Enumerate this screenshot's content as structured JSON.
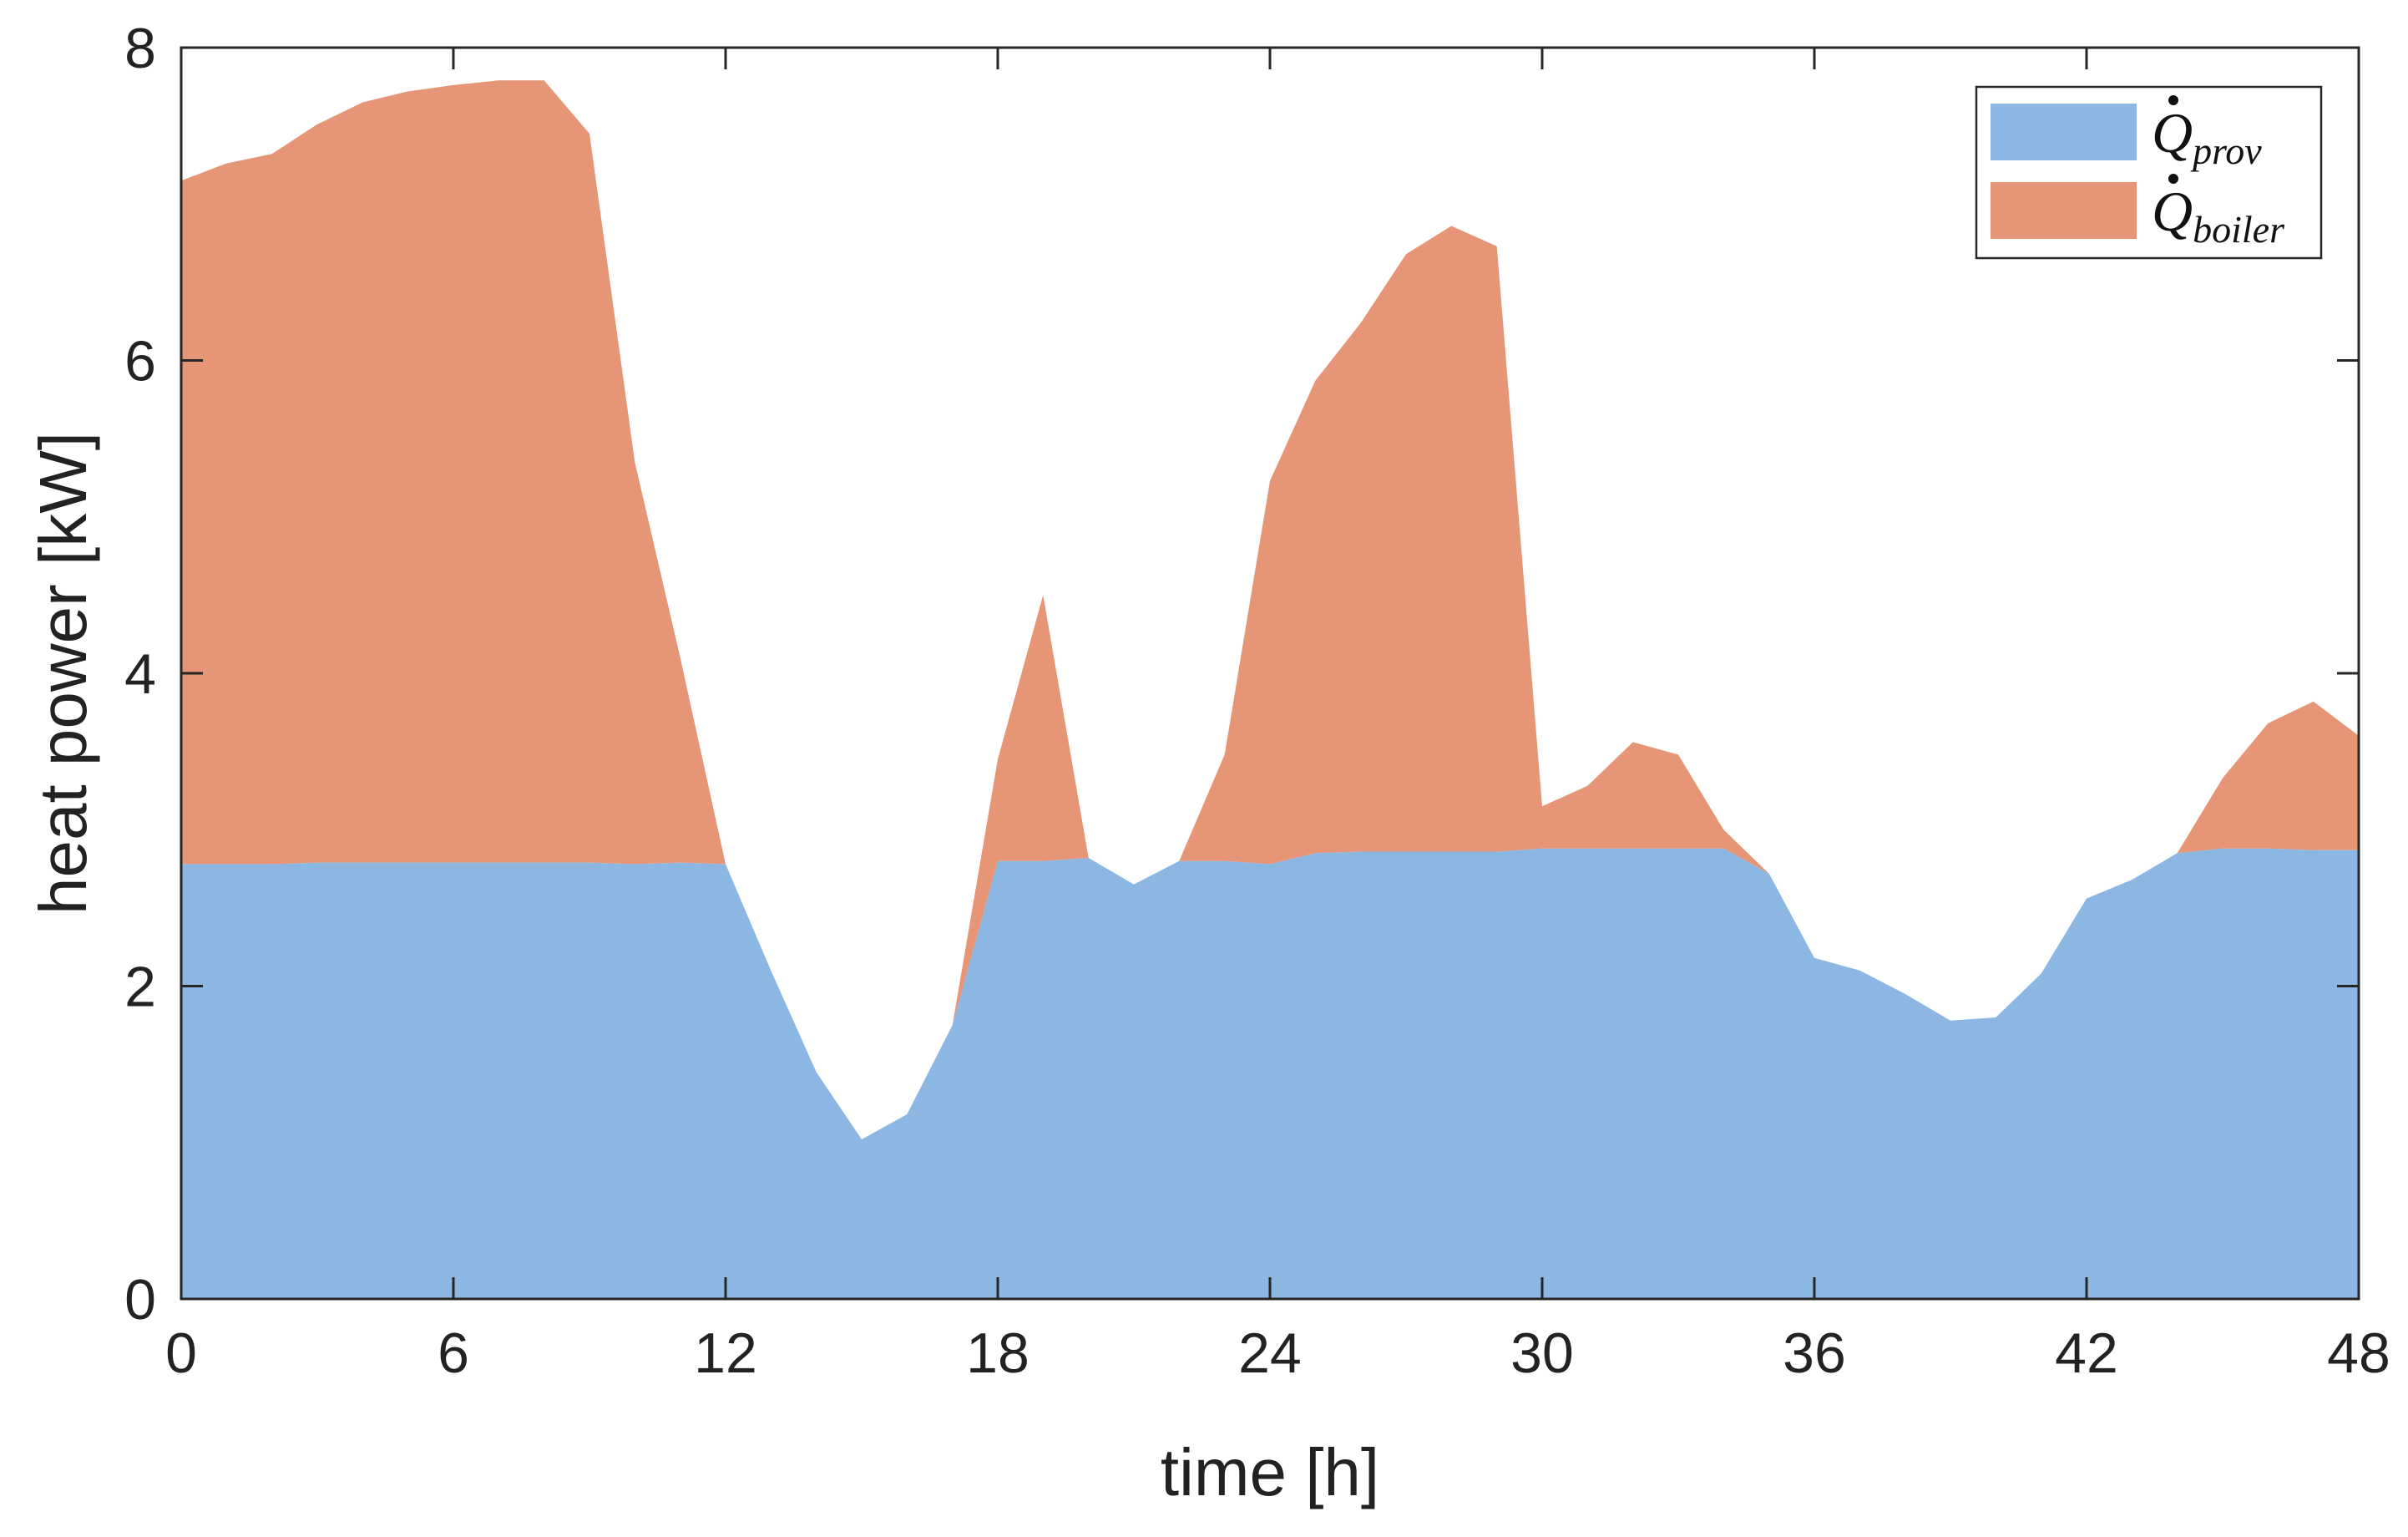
{
  "chart_data": {
    "type": "area",
    "stacked": true,
    "x": [
      0,
      1,
      2,
      3,
      4,
      5,
      6,
      7,
      8,
      9,
      10,
      11,
      12,
      13,
      14,
      15,
      16,
      17,
      18,
      19,
      20,
      21,
      22,
      23,
      24,
      25,
      26,
      27,
      28,
      29,
      30,
      31,
      32,
      33,
      34,
      35,
      36,
      37,
      38,
      39,
      40,
      41,
      42,
      43,
      44,
      45,
      46,
      47,
      48
    ],
    "series": [
      {
        "name": "Q_prov",
        "symbol": "Q",
        "subscript": "prov",
        "color": "#8db7e3",
        "values": [
          2.78,
          2.78,
          2.78,
          2.79,
          2.79,
          2.79,
          2.79,
          2.79,
          2.79,
          2.79,
          2.78,
          2.79,
          2.78,
          2.1,
          1.45,
          1.02,
          1.18,
          1.75,
          2.8,
          2.8,
          2.82,
          2.65,
          2.8,
          2.8,
          2.78,
          2.85,
          2.86,
          2.86,
          2.86,
          2.86,
          2.88,
          2.88,
          2.88,
          2.88,
          2.88,
          2.72,
          2.18,
          2.1,
          1.95,
          1.78,
          1.8,
          2.08,
          2.56,
          2.68,
          2.85,
          2.88,
          2.88,
          2.87,
          2.87
        ]
      },
      {
        "name": "Q_boiler",
        "symbol": "Q",
        "subscript": "boiler",
        "color": "#e69677",
        "values": [
          4.37,
          4.48,
          4.54,
          4.72,
          4.86,
          4.93,
          4.97,
          5.0,
          5.0,
          4.66,
          2.57,
          1.31,
          0.0,
          0.0,
          0.0,
          0.0,
          0.0,
          0.0,
          0.65,
          1.7,
          0.0,
          0.0,
          0.0,
          0.68,
          2.45,
          3.02,
          3.38,
          3.82,
          4.0,
          3.87,
          0.27,
          0.4,
          0.68,
          0.6,
          0.12,
          0.0,
          0.0,
          0.0,
          0.0,
          0.0,
          0.0,
          0.0,
          0.0,
          0.0,
          0.0,
          0.45,
          0.8,
          0.95,
          0.73
        ]
      }
    ],
    "title": "",
    "xlabel": "time [h]",
    "ylabel": "heat power [kW]",
    "xlim": [
      0,
      48
    ],
    "ylim": [
      0,
      8
    ],
    "xticks": [
      0,
      6,
      12,
      18,
      24,
      30,
      36,
      42,
      48
    ],
    "yticks": [
      0,
      2,
      4,
      6,
      8
    ],
    "grid": false,
    "legend_position": "top-right"
  }
}
